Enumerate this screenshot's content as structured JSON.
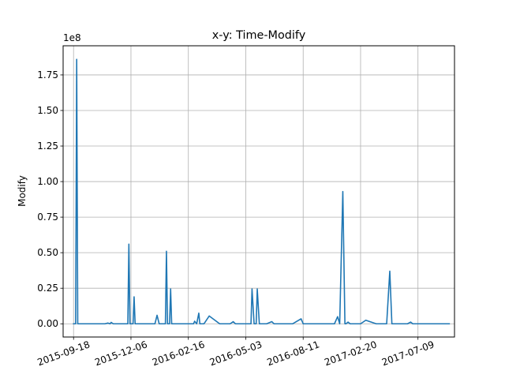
{
  "chart_data": {
    "type": "line",
    "title": "x-y: Time-Modify",
    "xlabel": "",
    "ylabel": "Modify",
    "offset_label": "1e8",
    "grid": true,
    "line_color": "#1f77b4",
    "ylim": [
      -9300000,
      195500000
    ],
    "xlim": [
      -20,
      730
    ],
    "x_ticks": [
      {
        "value": 0,
        "label": "2015-09-18"
      },
      {
        "value": 110,
        "label": "2015-12-06"
      },
      {
        "value": 220,
        "label": "2016-02-16"
      },
      {
        "value": 330,
        "label": "2016-05-03"
      },
      {
        "value": 440,
        "label": "2016-08-11"
      },
      {
        "value": 550,
        "label": "2017-02-20"
      },
      {
        "value": 660,
        "label": "2017-07-09"
      }
    ],
    "y_ticks": [
      {
        "value": 0,
        "label": "0.00"
      },
      {
        "value": 25000000,
        "label": "0.25"
      },
      {
        "value": 50000000,
        "label": "0.50"
      },
      {
        "value": 75000000,
        "label": "0.75"
      },
      {
        "value": 100000000,
        "label": "1.00"
      },
      {
        "value": 125000000,
        "label": "1.25"
      },
      {
        "value": 150000000,
        "label": "1.50"
      },
      {
        "value": 175000000,
        "label": "1.75"
      }
    ],
    "x": [
      0,
      4,
      6,
      8,
      10,
      20,
      40,
      60,
      66,
      70,
      72,
      76,
      80,
      90,
      100,
      104,
      106,
      108,
      114,
      116,
      118,
      120,
      130,
      150,
      156,
      160,
      164,
      170,
      176,
      178,
      180,
      184,
      186,
      188,
      200,
      226,
      230,
      232,
      236,
      240,
      242,
      246,
      250,
      260,
      280,
      300,
      306,
      310,
      320,
      340,
      342,
      346,
      350,
      352,
      356,
      360,
      370,
      380,
      384,
      390,
      400,
      420,
      436,
      440,
      444,
      446,
      450,
      460,
      480,
      500,
      506,
      510,
      516,
      520,
      522,
      526,
      530,
      540,
      550,
      560,
      580,
      600,
      606,
      610,
      620,
      640,
      646,
      650,
      656,
      660,
      680,
      686,
      690,
      700,
      720
    ],
    "values": [
      0,
      0,
      186000000,
      0,
      0,
      0,
      0,
      0,
      500000,
      0,
      1000000,
      0,
      0,
      0,
      0,
      0,
      56000000,
      0,
      0,
      19000000,
      0,
      0,
      0,
      0,
      0,
      6000000,
      0,
      0,
      0,
      51000000,
      0,
      0,
      24500000,
      0,
      0,
      0,
      0,
      1800000,
      0,
      7500000,
      0,
      0,
      0,
      5500000,
      0,
      0,
      1500000,
      0,
      0,
      0,
      24500000,
      0,
      0,
      24500000,
      0,
      0,
      0,
      1500000,
      0,
      0,
      0,
      0,
      3500000,
      0,
      0,
      0,
      0,
      0,
      0,
      0,
      5000000,
      0,
      93000000,
      0,
      0,
      1200000,
      0,
      0,
      0,
      2500000,
      0,
      0,
      37000000,
      0,
      0,
      0,
      1200000,
      0,
      0,
      0,
      0,
      0,
      0,
      0,
      0
    ]
  }
}
